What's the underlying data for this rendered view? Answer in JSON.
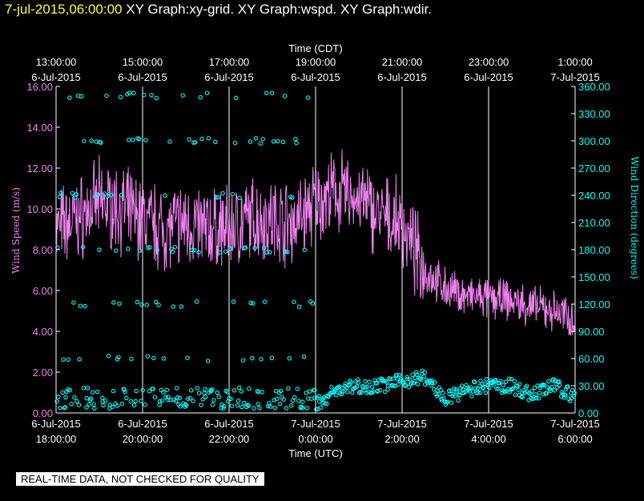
{
  "header": {
    "timestamp": "7-jul-2015,06:00:00",
    "title": "XY Graph:xy-grid.  XY Graph:wspd.  XY Graph:wdir."
  },
  "footer": {
    "qc_label": "REAL-TIME DATA, NOT CHECKED FOR QUALITY"
  },
  "colors": {
    "wind_speed": "#ee82ee",
    "wind_direction": "#00ffff",
    "grid": "#ffffff",
    "background": "#000000",
    "timestamp": "#ffff33"
  },
  "chart_data": {
    "type": "line",
    "title": "",
    "xlabel_top": "Time (CDT)",
    "xlabel_bottom": "Time (UTC)",
    "ylabel_left": "Wind Speed (m/s)",
    "ylabel_right": "Wind Direction (degrees)",
    "ylim_left": [
      0,
      16
    ],
    "ylim_right": [
      0,
      360
    ],
    "x_hours_utc_range": [
      18,
      30
    ],
    "grid": true,
    "yticks_left": [
      "0.00",
      "2.00",
      "4.00",
      "6.00",
      "8.00",
      "10.00",
      "12.00",
      "14.00",
      "16.00"
    ],
    "yticks_right": [
      "0.00",
      "30.00",
      "60.00",
      "90.00",
      "120.00",
      "150.00",
      "180.00",
      "210.00",
      "240.00",
      "270.00",
      "300.00",
      "330.00",
      "360.00"
    ],
    "xticks_bottom": [
      {
        "time": "18:00:00",
        "date": "6-Jul-2015"
      },
      {
        "time": "20:00:00",
        "date": "6-Jul-2015"
      },
      {
        "time": "22:00:00",
        "date": "6-Jul-2015"
      },
      {
        "time": "0:00:00",
        "date": "7-Jul-2015"
      },
      {
        "time": "2:00:00",
        "date": "7-Jul-2015"
      },
      {
        "time": "4:00:00",
        "date": "7-Jul-2015"
      },
      {
        "time": "6:00:00",
        "date": "7-Jul-2015"
      }
    ],
    "xticks_top": [
      {
        "time": "13:00:00",
        "date": "6-Jul-2015"
      },
      {
        "time": "15:00:00",
        "date": "6-Jul-2015"
      },
      {
        "time": "17:00:00",
        "date": "6-Jul-2015"
      },
      {
        "time": "19:00:00",
        "date": "6-Jul-2015"
      },
      {
        "time": "21:00:00",
        "date": "6-Jul-2015"
      },
      {
        "time": "23:00:00",
        "date": "6-Jul-2015"
      },
      {
        "time": "1:00:00",
        "date": "7-Jul-2015"
      }
    ],
    "series": [
      {
        "name": "Wind Speed",
        "axis": "left",
        "x_hours_utc": [
          18.0,
          18.5,
          19.0,
          19.5,
          20.0,
          20.5,
          21.0,
          21.5,
          22.0,
          22.5,
          23.0,
          23.5,
          24.0,
          24.5,
          25.0,
          25.5,
          26.0,
          26.5,
          27.0,
          27.5,
          28.0,
          28.5,
          29.0,
          29.5,
          30.0
        ],
        "values": [
          9.0,
          9.5,
          10.3,
          10.0,
          9.5,
          9.0,
          9.3,
          9.0,
          9.0,
          9.5,
          9.5,
          9.3,
          10.3,
          10.8,
          10.5,
          9.6,
          9.2,
          7.0,
          6.1,
          5.7,
          5.6,
          5.5,
          5.2,
          5.0,
          4.6
        ]
      },
      {
        "name": "Wind Direction",
        "axis": "right",
        "x_hours_utc": [
          18.0,
          18.5,
          19.0,
          19.5,
          20.0,
          20.5,
          21.0,
          21.5,
          22.0,
          22.5,
          23.0,
          23.5,
          24.0,
          24.5,
          25.0,
          25.5,
          26.0,
          26.5,
          27.0,
          27.5,
          28.0,
          28.5,
          29.0,
          29.5,
          30.0
        ],
        "values": [
          180,
          300,
          240,
          355,
          180,
          240,
          350,
          300,
          180,
          240,
          120,
          180,
          10,
          25,
          30,
          30,
          35,
          40,
          15,
          25,
          30,
          30,
          20,
          30,
          18
        ]
      }
    ]
  }
}
